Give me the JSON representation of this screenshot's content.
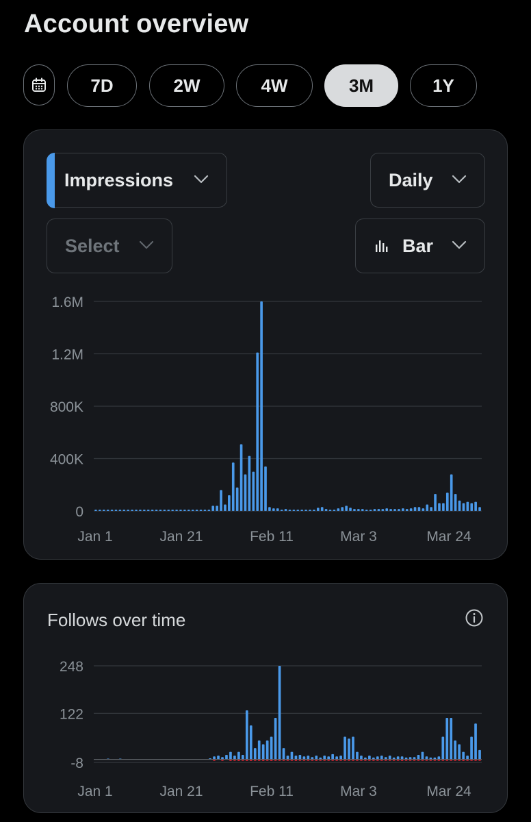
{
  "page": {
    "title": "Account overview"
  },
  "range": {
    "options": [
      "7D",
      "2W",
      "4W",
      "3M",
      "1Y"
    ],
    "selected": "3M"
  },
  "impressions_card": {
    "metric_label": "Impressions",
    "interval_label": "Daily",
    "compare_placeholder": "Select",
    "chart_type_label": "Bar"
  },
  "follows_card": {
    "title": "Follows over time"
  },
  "colors": {
    "accent": "#4a99e9",
    "unfollow": "#f4212e",
    "grid": "#33373c",
    "axis_label": "#8b9298"
  },
  "icons": [
    "calendar-icon",
    "chevron-down-icon",
    "bar-chart-icon",
    "info-icon"
  ],
  "chart_data": [
    {
      "type": "bar",
      "x_tick_labels": [
        "Jan 1",
        "Jan 21",
        "Feb 11",
        "Mar 3",
        "Mar 24"
      ],
      "y_tick_labels": [
        "0",
        "400K",
        "800K",
        "1.2M",
        "1.6M"
      ],
      "ylim": [
        0,
        1600000
      ],
      "grid": true,
      "series": [
        {
          "values": [
            10000,
            10000,
            10000,
            10000,
            10000,
            10000,
            10000,
            10000,
            10000,
            10000,
            10000,
            10000,
            10000,
            10000,
            10000,
            10000,
            10000,
            10000,
            10000,
            10000,
            10000,
            10000,
            10000,
            10000,
            10000,
            10000,
            10000,
            10000,
            10000,
            40000,
            40000,
            160000,
            50000,
            120000,
            370000,
            180000,
            510000,
            280000,
            420000,
            300000,
            1210000,
            1600000,
            340000,
            30000,
            20000,
            20000,
            10000,
            15000,
            10000,
            10000,
            10000,
            10000,
            10000,
            10000,
            10000,
            25000,
            30000,
            15000,
            10000,
            10000,
            20000,
            30000,
            40000,
            25000,
            15000,
            15000,
            15000,
            10000,
            10000,
            15000,
            15000,
            15000,
            20000,
            15000,
            15000,
            15000,
            20000,
            15000,
            20000,
            30000,
            30000,
            20000,
            50000,
            30000,
            130000,
            60000,
            60000,
            140000,
            280000,
            130000,
            80000,
            60000,
            70000,
            60000,
            70000,
            30000
          ]
        }
      ]
    },
    {
      "type": "bar",
      "title": "Follows over time",
      "x_tick_labels": [
        "Jan 1",
        "Jan 21",
        "Feb 11",
        "Mar 3",
        "Mar 24"
      ],
      "y_tick_labels": [
        "-8",
        "122",
        "248"
      ],
      "ylim": [
        -8,
        248
      ],
      "grid": true,
      "series": [
        {
          "values": [
            0,
            0,
            0,
            2,
            0,
            0,
            2,
            0,
            0,
            0,
            0,
            0,
            0,
            0,
            0,
            0,
            0,
            0,
            0,
            0,
            0,
            0,
            0,
            0,
            0,
            0,
            0,
            0,
            3,
            8,
            10,
            6,
            12,
            20,
            10,
            20,
            12,
            130,
            90,
            30,
            50,
            40,
            50,
            60,
            110,
            248,
            30,
            10,
            20,
            10,
            12,
            8,
            10,
            6,
            10,
            5,
            10,
            8,
            14,
            8,
            10,
            60,
            55,
            60,
            20,
            10,
            5,
            10,
            5,
            8,
            10,
            6,
            10,
            5,
            8,
            8,
            5,
            6,
            6,
            12,
            20,
            8,
            5,
            5,
            8,
            60,
            110,
            110,
            50,
            40,
            20,
            10,
            60,
            95,
            25
          ]
        },
        {
          "values": [
            0,
            0,
            0,
            0,
            0,
            0,
            0,
            0,
            0,
            0,
            0,
            0,
            0,
            0,
            0,
            0,
            0,
            0,
            0,
            0,
            0,
            0,
            0,
            0,
            0,
            0,
            0,
            0,
            0,
            -2,
            0,
            -2,
            0,
            -4,
            -2,
            -4,
            -3,
            -4,
            -4,
            -2,
            -3,
            -4,
            -3,
            -4,
            -3,
            -2,
            -2,
            -3,
            -3,
            -4,
            -3,
            -3,
            -2,
            -2,
            -4,
            -3,
            -2,
            -2,
            -3,
            -2,
            -3,
            -3,
            -2,
            -3,
            -2,
            -3,
            -2,
            -3,
            -2,
            -3,
            -2,
            -2,
            -3,
            -3,
            -2,
            -4,
            -2,
            -3,
            -2,
            -3,
            -2,
            -3,
            -2,
            -3,
            -2,
            -2,
            -3,
            -3,
            -2,
            -3,
            -4,
            -2,
            -3,
            -3,
            -2
          ]
        }
      ]
    }
  ]
}
